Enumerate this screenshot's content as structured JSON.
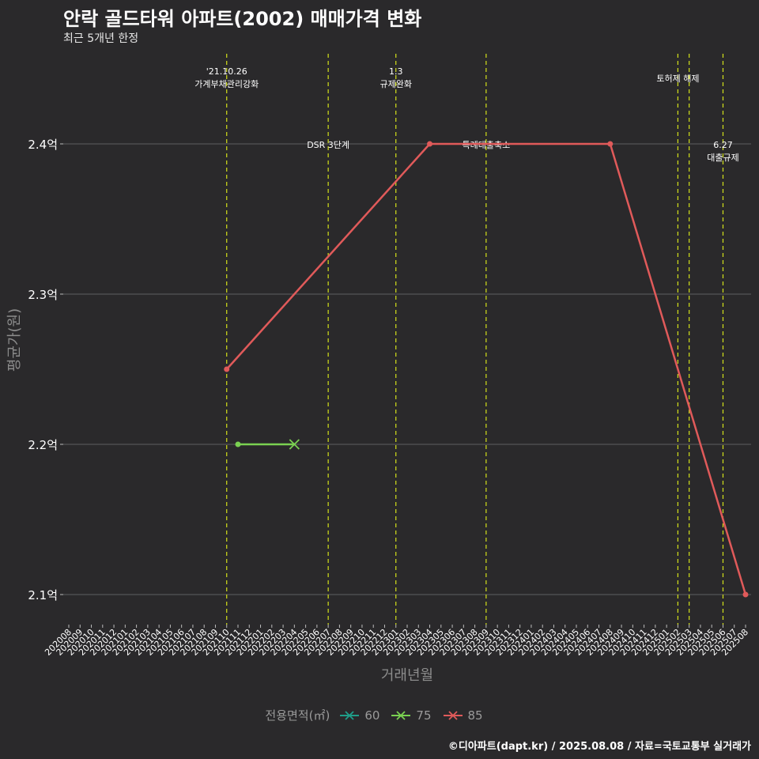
{
  "title": "안락 골드타워 아파트(2002) 매매가격 변화",
  "subtitle": "최근 5개년 한정",
  "footer": "©디아파트(dapt.kr) / 2025.08.08 / 자료=국토교통부 실거래가",
  "colors": {
    "background": "#2a292b",
    "grid": "#5e5e60",
    "event_line": "#d4e21a",
    "series_60": "#1f9e89",
    "series_75": "#7ad151",
    "series_85": "#e05a5a"
  },
  "chart_data": {
    "type": "line",
    "xlabel": "거래년월",
    "ylabel": "평균가(원)",
    "ylim": [
      2.08,
      2.46
    ],
    "grid": true,
    "legend_position": "bottom",
    "legend_title": "전용면적(㎡)",
    "y_ticks": [
      {
        "value": 2.1,
        "label": "2.1억"
      },
      {
        "value": 2.2,
        "label": "2.2억"
      },
      {
        "value": 2.3,
        "label": "2.3억"
      },
      {
        "value": 2.4,
        "label": "2.4억"
      }
    ],
    "categories": [
      "202008",
      "202009",
      "202010",
      "202011",
      "202012",
      "202101",
      "202102",
      "202103",
      "202104",
      "202105",
      "202106",
      "202107",
      "202108",
      "202109",
      "202110",
      "202111",
      "202112",
      "202201",
      "202202",
      "202203",
      "202204",
      "202205",
      "202206",
      "202207",
      "202208",
      "202209",
      "202210",
      "202211",
      "202212",
      "202301",
      "202302",
      "202303",
      "202304",
      "202305",
      "202306",
      "202307",
      "202308",
      "202309",
      "202310",
      "202311",
      "202312",
      "202401",
      "202402",
      "202403",
      "202404",
      "202405",
      "202406",
      "202407",
      "202408",
      "202409",
      "202410",
      "202411",
      "202412",
      "202501",
      "202502",
      "202503",
      "202504",
      "202505",
      "202506",
      "202507",
      "202508"
    ],
    "series": [
      {
        "name": "60",
        "color": "#1f9e89",
        "points": []
      },
      {
        "name": "75",
        "color": "#7ad151",
        "points": [
          {
            "x": "202111",
            "y": 2.2
          },
          {
            "x": "202204",
            "y": 2.2
          }
        ]
      },
      {
        "name": "85",
        "color": "#e05a5a",
        "points": [
          {
            "x": "202110",
            "y": 2.25
          },
          {
            "x": "202304",
            "y": 2.4
          },
          {
            "x": "202408",
            "y": 2.4
          },
          {
            "x": "202508",
            "y": 2.1
          }
        ]
      }
    ],
    "events": [
      {
        "x": "202110",
        "lines": [
          "'21.10.26",
          "가계부채관리강화"
        ],
        "level": "top"
      },
      {
        "x": "202207",
        "lines": [
          "DSR 3단계"
        ],
        "level": "mid"
      },
      {
        "x": "202301",
        "lines": [
          "1.3",
          "규제완화"
        ],
        "level": "top"
      },
      {
        "x": "202309",
        "lines": [
          "특례대출축소"
        ],
        "level": "mid"
      },
      {
        "x": "202502",
        "lines": [
          "토허제 해제"
        ],
        "level": "top-single"
      },
      {
        "x": "202503",
        "lines": [],
        "level": "none"
      },
      {
        "x": "202506",
        "lines": [
          "6.27",
          "대출규제"
        ],
        "level": "mid"
      }
    ]
  }
}
